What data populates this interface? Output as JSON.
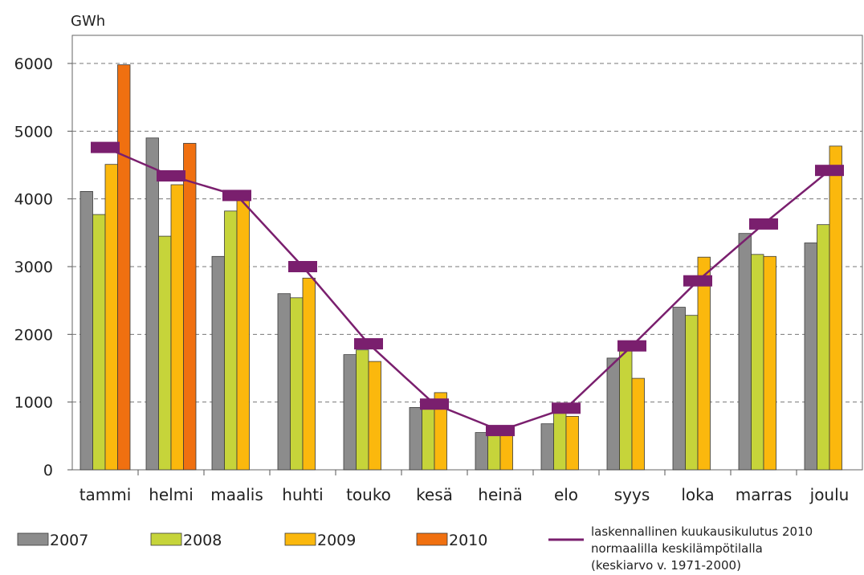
{
  "chart_data": {
    "type": "bar",
    "ylabel": "GWh",
    "ylim": [
      0,
      6000
    ],
    "yticks": [
      "0",
      "1000",
      "2000",
      "3000",
      "4000",
      "5000",
      "6000"
    ],
    "grid": true,
    "legend_position": "bottom",
    "categories": [
      "tammi",
      "helmi",
      "maalis",
      "huhti",
      "touko",
      "kesä",
      "heinä",
      "elo",
      "syys",
      "loka",
      "marras",
      "joulu"
    ],
    "series": [
      {
        "name": "2007",
        "color": "#8c8c8c",
        "values": [
          4110,
          4900,
          3150,
          2600,
          1700,
          920,
          550,
          680,
          1650,
          2400,
          3490,
          3350
        ]
      },
      {
        "name": "2008",
        "color": "#c6d43a",
        "values": [
          3770,
          3450,
          3820,
          2540,
          1770,
          1020,
          610,
          930,
          1860,
          2280,
          3180,
          3620
        ]
      },
      {
        "name": "2009",
        "color": "#fbb80d",
        "values": [
          4510,
          4210,
          4040,
          2830,
          1600,
          1140,
          570,
          790,
          1350,
          3140,
          3150,
          4780
        ]
      },
      {
        "name": "2010",
        "color": "#f07010",
        "values": [
          5980,
          4820,
          null,
          null,
          null,
          null,
          null,
          null,
          null,
          null,
          null,
          null
        ]
      }
    ],
    "line_series": {
      "name_lines": [
        "laskennallinen kuukausikulutus 2010",
        "normaalilla keskilämpötilalla",
        "(keskiarvo v. 1971-2000)"
      ],
      "color": "#7a1f6e",
      "values": [
        4760,
        4340,
        4050,
        3000,
        1860,
        970,
        580,
        910,
        1830,
        2790,
        3630,
        4420
      ]
    }
  }
}
